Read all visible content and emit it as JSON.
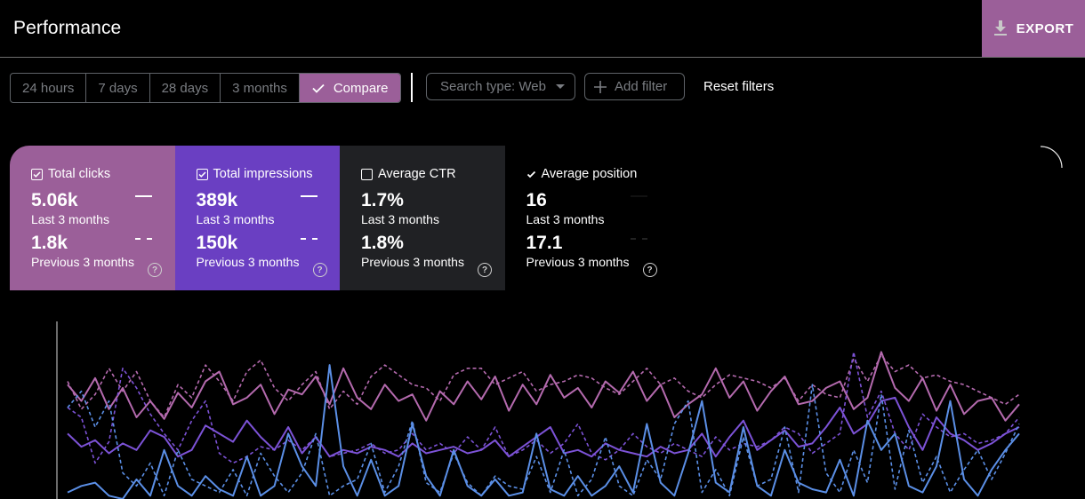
{
  "header": {
    "title": "Performance",
    "export_label": "EXPORT"
  },
  "date_range": {
    "options": [
      "24 hours",
      "7 days",
      "28 days",
      "3 months"
    ],
    "compare_label": "Compare",
    "selected": "Compare"
  },
  "filters": {
    "search_type": "Search type: Web",
    "add_filter": "Add filter",
    "reset": "Reset filters"
  },
  "metrics": [
    {
      "name": "Total clicks",
      "checked": true,
      "current": "5.06k",
      "current_label": "Last 3 months",
      "previous": "1.8k",
      "previous_label": "Previous 3 months",
      "color": "#9b5f99"
    },
    {
      "name": "Total impressions",
      "checked": true,
      "current": "389k",
      "current_label": "Last 3 months",
      "previous": "150k",
      "previous_label": "Previous 3 months",
      "color": "#6a3fc2"
    },
    {
      "name": "Average CTR",
      "checked": false,
      "current": "1.7%",
      "current_label": "Last 3 months",
      "previous": "1.8%",
      "previous_label": "Previous 3 months",
      "color": "#202124"
    },
    {
      "name": "Average position",
      "checked": true,
      "current": "16",
      "current_label": "Last 3 months",
      "previous": "17.1",
      "previous_label": "Previous 3 months",
      "color": "#000000"
    }
  ],
  "colors": {
    "clicks_line": "#b46aae",
    "impressions_line": "#7c52d6",
    "position_line": "#5b8fe6",
    "border": "#5f6368"
  },
  "chart_data": {
    "type": "line",
    "title": "",
    "xlabel": "",
    "ylabel": "",
    "ylim": [
      0,
      100
    ],
    "series": [
      {
        "name": "Total clicks (last 3 months)",
        "style": "solid",
        "color": "#b46aae",
        "values": [
          70,
          60,
          74,
          55,
          68,
          50,
          60,
          49,
          65,
          56,
          72,
          78,
          58,
          62,
          70,
          52,
          67,
          64,
          75,
          58,
          80,
          62,
          55,
          70,
          60,
          64,
          48,
          66,
          58,
          72,
          61,
          75,
          54,
          70,
          58,
          76,
          62,
          68,
          56,
          72,
          65,
          78,
          60,
          70,
          50,
          58,
          64,
          80,
          62,
          72,
          54,
          66,
          75,
          58,
          60,
          68,
          72,
          55,
          62,
          90,
          68,
          60,
          74,
          54,
          70,
          52,
          60,
          62,
          48,
          58
        ]
      },
      {
        "name": "Total clicks (previous 3 months)",
        "style": "dashed",
        "color": "#b46aae",
        "values": [
          72,
          55,
          64,
          80,
          66,
          78,
          60,
          50,
          70,
          62,
          82,
          72,
          60,
          78,
          85,
          68,
          60,
          70,
          78,
          55,
          66,
          58,
          75,
          82,
          76,
          70,
          68,
          60,
          76,
          80,
          80,
          70,
          74,
          78,
          66,
          70,
          72,
          76,
          74,
          68,
          64,
          72,
          80,
          70,
          74,
          66,
          62,
          70,
          76,
          74,
          72,
          68,
          74,
          60,
          70,
          64,
          62,
          86,
          72,
          88,
          78,
          82,
          74,
          76,
          72,
          70,
          66,
          62,
          58,
          64
        ]
      },
      {
        "name": "Total impressions (last 3 months)",
        "style": "solid",
        "color": "#7c52d6",
        "values": [
          40,
          32,
          36,
          28,
          34,
          30,
          42,
          38,
          26,
          30,
          45,
          40,
          35,
          48,
          38,
          30,
          44,
          28,
          38,
          26,
          30,
          28,
          32,
          30,
          26,
          34,
          28,
          30,
          32,
          28,
          30,
          36,
          26,
          32,
          38,
          44,
          28,
          30,
          26,
          34,
          30,
          28,
          26,
          32,
          28,
          30,
          40,
          26,
          38,
          48,
          30,
          36,
          42,
          32,
          34,
          44,
          56,
          40,
          46,
          60,
          62,
          44,
          30,
          50,
          40,
          36,
          30,
          34,
          40,
          44
        ]
      },
      {
        "name": "Total impressions (previous 3 months)",
        "style": "dashed",
        "color": "#7c52d6",
        "values": [
          56,
          50,
          22,
          35,
          80,
          68,
          52,
          40,
          30,
          48,
          60,
          28,
          22,
          26,
          32,
          30,
          36,
          30,
          38,
          26,
          28,
          30,
          34,
          28,
          30,
          40,
          30,
          34,
          28,
          38,
          30,
          44,
          26,
          30,
          36,
          28,
          34,
          46,
          28,
          24,
          30,
          40,
          32,
          28,
          34,
          30,
          26,
          38,
          30,
          34,
          32,
          36,
          44,
          40,
          28,
          34,
          40,
          90,
          50,
          66,
          40,
          30,
          52,
          44,
          38,
          40,
          34,
          36,
          40,
          50
        ]
      },
      {
        "name": "Average position (last 3 months)",
        "style": "solid",
        "color": "#5b8fe6",
        "values": [
          4,
          8,
          10,
          2,
          0,
          12,
          2,
          30,
          8,
          2,
          14,
          6,
          2,
          26,
          2,
          8,
          40,
          20,
          8,
          82,
          20,
          2,
          24,
          2,
          8,
          46,
          14,
          2,
          30,
          8,
          2,
          12,
          2,
          4,
          40,
          6,
          2,
          14,
          2,
          8,
          20,
          4,
          46,
          10,
          2,
          28,
          60,
          10,
          4,
          44,
          8,
          2,
          30,
          10,
          6,
          4,
          24,
          2,
          48,
          30,
          40,
          8,
          4,
          20,
          60,
          12,
          2,
          18,
          30,
          40
        ]
      },
      {
        "name": "Average position (previous 3 months)",
        "style": "dashed",
        "color": "#5b8fe6",
        "values": [
          56,
          66,
          44,
          60,
          16,
          8,
          22,
          2,
          30,
          12,
          8,
          4,
          18,
          2,
          28,
          14,
          4,
          16,
          40,
          2,
          8,
          12,
          34,
          4,
          20,
          48,
          10,
          4,
          28,
          10,
          2,
          14,
          8,
          6,
          26,
          4,
          30,
          2,
          12,
          38,
          8,
          2,
          24,
          12,
          46,
          60,
          4,
          18,
          2,
          38,
          8,
          12,
          44,
          4,
          70,
          16,
          4,
          30,
          10,
          64,
          6,
          42,
          10,
          26,
          4,
          18,
          30,
          12,
          28,
          46
        ]
      }
    ]
  }
}
